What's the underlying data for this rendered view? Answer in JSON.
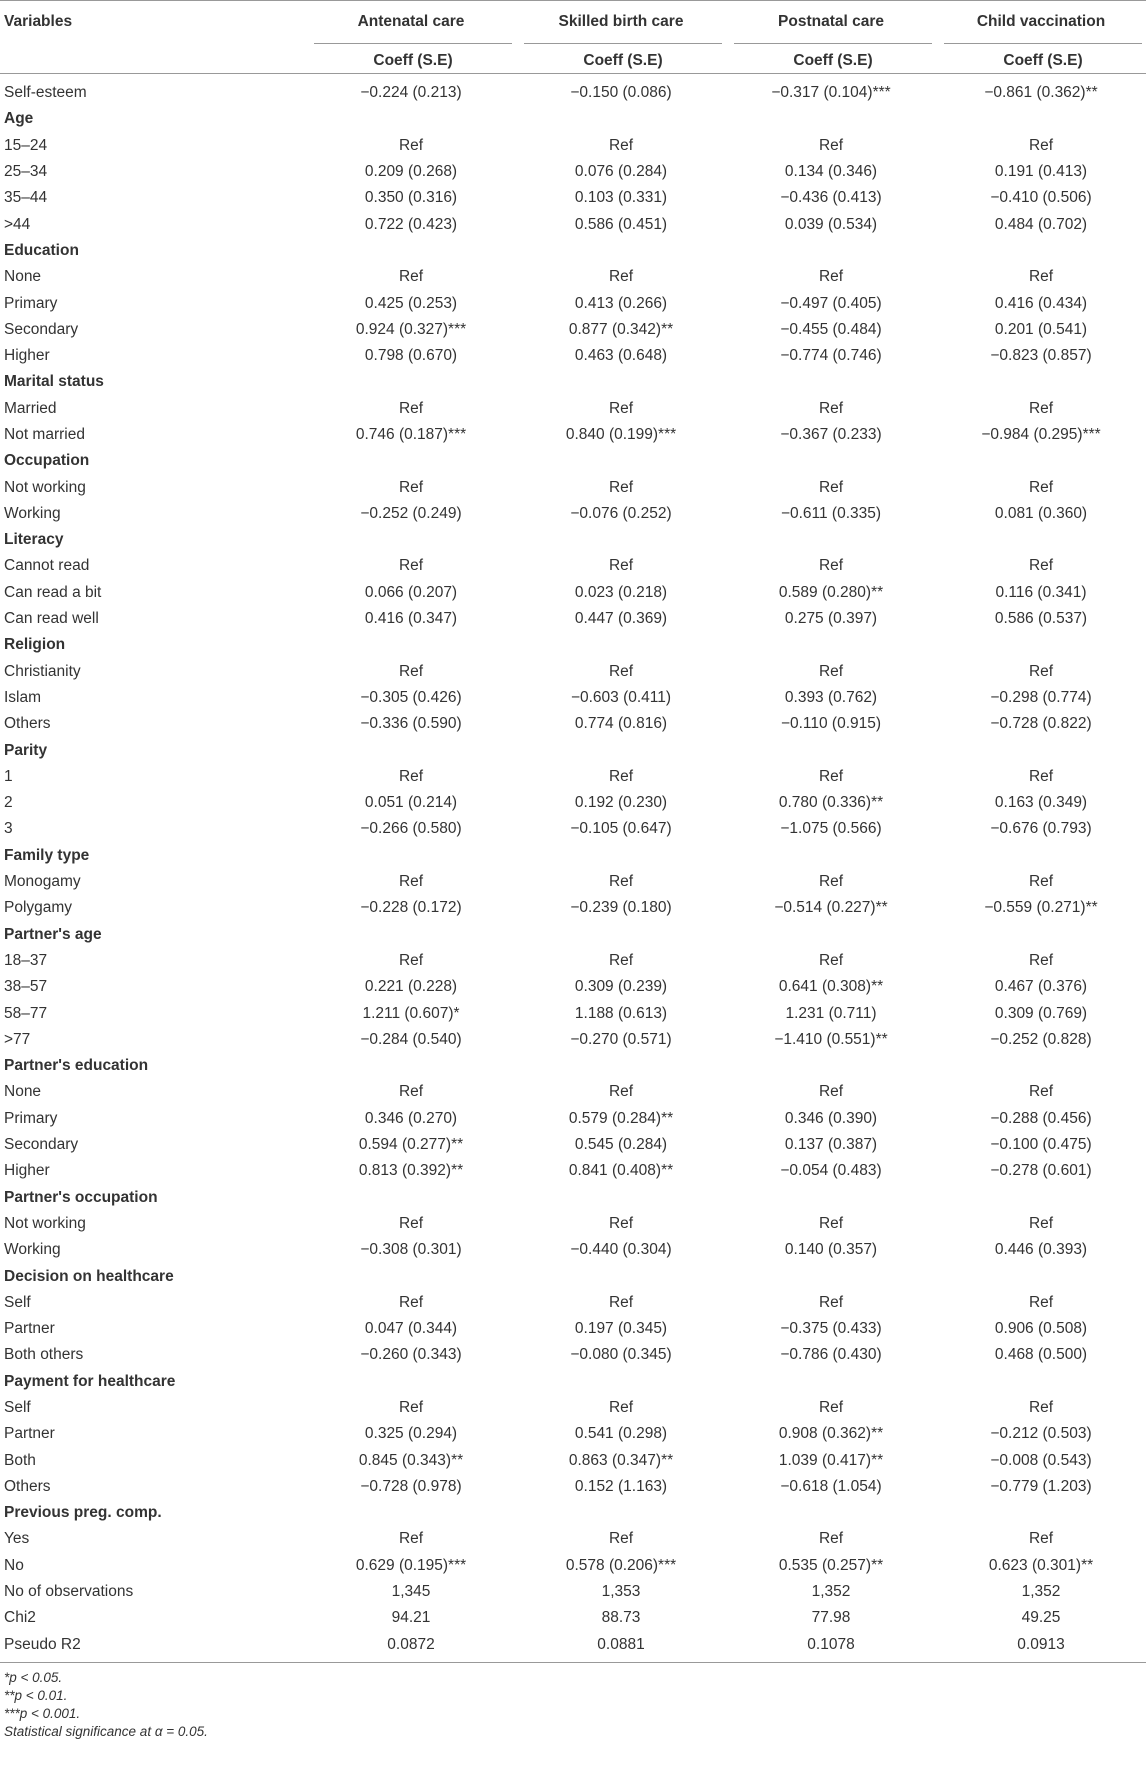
{
  "table": {
    "header": [
      "Variables",
      "Antenatal care",
      "Skilled birth care",
      "Postnatal care",
      "Child vaccination"
    ],
    "subheader": [
      "Coeff (S.E)",
      "Coeff (S.E)",
      "Coeff (S.E)",
      "Coeff (S.E)"
    ],
    "rows": [
      [
        "Self-esteem",
        "−0.224 (0.213)",
        "−0.150 (0.086)",
        "−0.317 (0.104)***",
        "−0.861 (0.362)**"
      ],
      [
        "Age"
      ],
      [
        "15–24",
        "Ref",
        "Ref",
        "Ref",
        "Ref"
      ],
      [
        "25–34",
        "0.209 (0.268)",
        "0.076 (0.284)",
        "0.134 (0.346)",
        "0.191 (0.413)"
      ],
      [
        "35–44",
        "0.350 (0.316)",
        "0.103 (0.331)",
        "−0.436 (0.413)",
        "−0.410 (0.506)"
      ],
      [
        ">44",
        "0.722 (0.423)",
        "0.586 (0.451)",
        "0.039 (0.534)",
        "0.484 (0.702)"
      ],
      [
        "Education"
      ],
      [
        "None",
        "Ref",
        "Ref",
        "Ref",
        "Ref"
      ],
      [
        "Primary",
        "0.425 (0.253)",
        "0.413 (0.266)",
        "−0.497 (0.405)",
        "0.416 (0.434)"
      ],
      [
        "Secondary",
        "0.924 (0.327)***",
        "0.877 (0.342)**",
        "−0.455 (0.484)",
        "0.201 (0.541)"
      ],
      [
        "Higher",
        "0.798 (0.670)",
        "0.463 (0.648)",
        "−0.774 (0.746)",
        "−0.823 (0.857)"
      ],
      [
        "Marital status"
      ],
      [
        "Married",
        "Ref",
        "Ref",
        "Ref",
        "Ref"
      ],
      [
        "Not married",
        "0.746 (0.187)***",
        "0.840 (0.199)***",
        "−0.367 (0.233)",
        "−0.984 (0.295)***"
      ],
      [
        "Occupation"
      ],
      [
        "Not working",
        "Ref",
        "Ref",
        "Ref",
        "Ref"
      ],
      [
        "Working",
        "−0.252 (0.249)",
        "−0.076 (0.252)",
        "−0.611 (0.335)",
        "0.081 (0.360)"
      ],
      [
        "Literacy"
      ],
      [
        "Cannot read",
        "Ref",
        "Ref",
        "Ref",
        "Ref"
      ],
      [
        "Can read a bit",
        "0.066 (0.207)",
        "0.023 (0.218)",
        "0.589 (0.280)**",
        "0.116 (0.341)"
      ],
      [
        "Can read well",
        "0.416 (0.347)",
        "0.447 (0.369)",
        "0.275 (0.397)",
        "0.586 (0.537)"
      ],
      [
        "Religion"
      ],
      [
        "Christianity",
        "Ref",
        "Ref",
        "Ref",
        "Ref"
      ],
      [
        "Islam",
        "−0.305 (0.426)",
        "−0.603 (0.411)",
        "0.393 (0.762)",
        "−0.298 (0.774)"
      ],
      [
        "Others",
        "−0.336 (0.590)",
        "0.774 (0.816)",
        "−0.110 (0.915)",
        "−0.728 (0.822)"
      ],
      [
        "Parity"
      ],
      [
        "1",
        "Ref",
        "Ref",
        "Ref",
        "Ref"
      ],
      [
        "2",
        "0.051 (0.214)",
        "0.192 (0.230)",
        "0.780 (0.336)**",
        "0.163 (0.349)"
      ],
      [
        "3",
        "−0.266 (0.580)",
        "−0.105 (0.647)",
        "−1.075 (0.566)",
        "−0.676 (0.793)"
      ],
      [
        "Family type"
      ],
      [
        "Monogamy",
        "Ref",
        "Ref",
        "Ref",
        "Ref"
      ],
      [
        "Polygamy",
        "−0.228 (0.172)",
        "−0.239 (0.180)",
        "−0.514 (0.227)**",
        "−0.559 (0.271)**"
      ],
      [
        "Partner's age"
      ],
      [
        "18–37",
        "Ref",
        "Ref",
        "Ref",
        "Ref"
      ],
      [
        "38–57",
        "0.221 (0.228)",
        "0.309 (0.239)",
        "0.641 (0.308)**",
        "0.467 (0.376)"
      ],
      [
        "58–77",
        "1.211 (0.607)*",
        "1.188 (0.613)",
        "1.231 (0.711)",
        "0.309 (0.769)"
      ],
      [
        ">77",
        "−0.284 (0.540)",
        "−0.270 (0.571)",
        "−1.410 (0.551)**",
        "−0.252 (0.828)"
      ],
      [
        "Partner's education"
      ],
      [
        "None",
        "Ref",
        "Ref",
        "Ref",
        "Ref"
      ],
      [
        "Primary",
        "0.346 (0.270)",
        "0.579 (0.284)**",
        "0.346 (0.390)",
        "−0.288 (0.456)"
      ],
      [
        "Secondary",
        "0.594 (0.277)**",
        "0.545 (0.284)",
        "0.137 (0.387)",
        "−0.100 (0.475)"
      ],
      [
        "Higher",
        "0.813 (0.392)**",
        "0.841 (0.408)**",
        "−0.054 (0.483)",
        "−0.278 (0.601)"
      ],
      [
        "Partner's occupation"
      ],
      [
        "Not working",
        "Ref",
        "Ref",
        "Ref",
        "Ref"
      ],
      [
        "Working",
        "−0.308 (0.301)",
        "−0.440 (0.304)",
        "0.140 (0.357)",
        "0.446 (0.393)"
      ],
      [
        "Decision on healthcare"
      ],
      [
        "Self",
        "Ref",
        "Ref",
        "Ref",
        "Ref"
      ],
      [
        "Partner",
        "0.047 (0.344)",
        "0.197 (0.345)",
        "−0.375 (0.433)",
        "0.906 (0.508)"
      ],
      [
        "Both others",
        "−0.260 (0.343)",
        "−0.080 (0.345)",
        "−0.786 (0.430)",
        "0.468 (0.500)"
      ],
      [
        "Payment for healthcare"
      ],
      [
        "Self",
        "Ref",
        "Ref",
        "Ref",
        "Ref"
      ],
      [
        "Partner",
        "0.325 (0.294)",
        "0.541 (0.298)",
        "0.908 (0.362)**",
        "−0.212 (0.503)"
      ],
      [
        "Both",
        "0.845 (0.343)**",
        "0.863 (0.347)**",
        "1.039 (0.417)**",
        "−0.008 (0.543)"
      ],
      [
        "Others",
        "−0.728 (0.978)",
        "0.152 (1.163)",
        "−0.618 (1.054)",
        "−0.779 (1.203)"
      ],
      [
        "Previous preg. comp."
      ],
      [
        "Yes",
        "Ref",
        "Ref",
        "Ref",
        "Ref"
      ],
      [
        "No",
        "0.629 (0.195)***",
        "0.578 (0.206)***",
        "0.535 (0.257)**",
        "0.623 (0.301)**"
      ],
      [
        "No of observations",
        "1,345",
        "1,353",
        "1,352",
        "1,352"
      ],
      [
        "Chi2",
        "94.21",
        "88.73",
        "77.98",
        "49.25"
      ],
      [
        "Pseudo R2",
        "0.0872",
        "0.0881",
        "0.1078",
        "0.0913"
      ]
    ],
    "footnotes": [
      "*p < 0.05.",
      "**p < 0.01.",
      "***p < 0.001.",
      "Statistical significance at α = 0.05."
    ]
  }
}
